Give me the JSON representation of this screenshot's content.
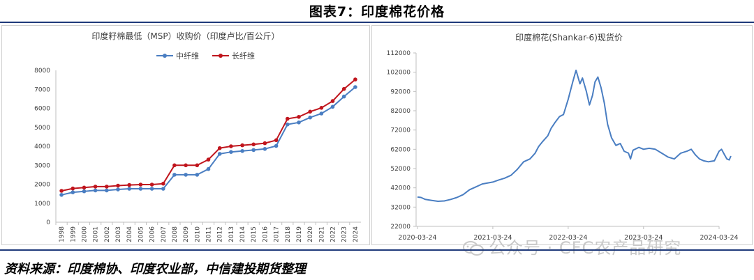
{
  "page": {
    "title": "图表7：印度棉花价格",
    "source": "资料来源：印度棉协、印度农业部，中信建投期货整理",
    "watermark": "公众号 · CFC农产品研究"
  },
  "chart_data": [
    {
      "type": "line",
      "title": "印度籽棉最低（MSP）收购价（印度卢比/百公斤）",
      "legend_position": "top",
      "categories": [
        "1998",
        "1999",
        "2000",
        "2001",
        "2002",
        "2003",
        "2004",
        "2005",
        "2006",
        "2007",
        "2008",
        "2009",
        "2010",
        "2011",
        "2012",
        "2013",
        "2014",
        "2015",
        "2016",
        "2017",
        "2018",
        "2019",
        "2020",
        "2021",
        "2022",
        "2023",
        "2024"
      ],
      "series": [
        {
          "name": "中纤维",
          "color": "#4a7ec2",
          "values": [
            1440,
            1575,
            1625,
            1675,
            1675,
            1725,
            1760,
            1760,
            1760,
            1760,
            2500,
            2500,
            2500,
            2800,
            3600,
            3700,
            3750,
            3800,
            3860,
            4020,
            5150,
            5255,
            5515,
            5726,
            6080,
            6620,
            7121
          ]
        },
        {
          "name": "长纤维",
          "color": "#c0151d",
          "values": [
            1650,
            1775,
            1825,
            1875,
            1875,
            1925,
            1960,
            1980,
            1980,
            2030,
            3000,
            3000,
            3000,
            3300,
            3900,
            4000,
            4050,
            4100,
            4160,
            4320,
            5450,
            5550,
            5825,
            6025,
            6380,
            7020,
            7521
          ]
        }
      ],
      "ylim": [
        0,
        8000
      ],
      "yticks": [
        0,
        1000,
        2000,
        3000,
        4000,
        5000,
        6000,
        7000,
        8000
      ],
      "grid": false
    },
    {
      "type": "line",
      "title": "印度棉花(Shankar-6)现货价",
      "x_start": "2020-03-24",
      "x_end": "2024-05-20",
      "xticks": [
        "2020-03-24",
        "2021-03-24",
        "2022-03-24",
        "2023-03-24",
        "2024-03-24"
      ],
      "ylim": [
        22000,
        112000
      ],
      "yticks": [
        22000,
        32000,
        42000,
        52000,
        62000,
        72000,
        82000,
        92000,
        102000,
        112000
      ],
      "grid": false,
      "series": [
        {
          "name": "",
          "color": "#4a7ec2",
          "points": [
            [
              "2020-03-24",
              37200
            ],
            [
              "2020-04-10",
              37000
            ],
            [
              "2020-05-01",
              36000
            ],
            [
              "2020-06-01",
              35500
            ],
            [
              "2020-07-01",
              35000
            ],
            [
              "2020-08-01",
              35200
            ],
            [
              "2020-09-01",
              36000
            ],
            [
              "2020-10-01",
              37000
            ],
            [
              "2020-11-01",
              38500
            ],
            [
              "2020-12-01",
              41000
            ],
            [
              "2021-01-01",
              42500
            ],
            [
              "2021-02-01",
              44000
            ],
            [
              "2021-03-24",
              45000
            ],
            [
              "2021-04-20",
              46000
            ],
            [
              "2021-05-20",
              47000
            ],
            [
              "2021-06-20",
              48500
            ],
            [
              "2021-07-20",
              51500
            ],
            [
              "2021-08-20",
              55500
            ],
            [
              "2021-09-20",
              57000
            ],
            [
              "2021-10-15",
              60000
            ],
            [
              "2021-11-01",
              63500
            ],
            [
              "2021-11-20",
              66000
            ],
            [
              "2021-12-15",
              69000
            ],
            [
              "2022-01-01",
              73000
            ],
            [
              "2022-01-20",
              76000
            ],
            [
              "2022-02-10",
              79000
            ],
            [
              "2022-03-01",
              80000
            ],
            [
              "2022-03-24",
              88000
            ],
            [
              "2022-04-15",
              97000
            ],
            [
              "2022-05-01",
              103000
            ],
            [
              "2022-05-20",
              96000
            ],
            [
              "2022-06-01",
              99000
            ],
            [
              "2022-06-20",
              92000
            ],
            [
              "2022-07-05",
              85000
            ],
            [
              "2022-07-20",
              90000
            ],
            [
              "2022-08-01",
              97000
            ],
            [
              "2022-08-15",
              99500
            ],
            [
              "2022-08-30",
              94000
            ],
            [
              "2022-09-15",
              86000
            ],
            [
              "2022-10-01",
              75000
            ],
            [
              "2022-10-20",
              68000
            ],
            [
              "2022-11-10",
              64000
            ],
            [
              "2022-12-01",
              65000
            ],
            [
              "2022-12-20",
              61000
            ],
            [
              "2023-01-10",
              60000
            ],
            [
              "2023-01-20",
              57000
            ],
            [
              "2023-02-01",
              61500
            ],
            [
              "2023-03-01",
              63000
            ],
            [
              "2023-03-24",
              62000
            ],
            [
              "2023-04-20",
              62500
            ],
            [
              "2023-05-20",
              62000
            ],
            [
              "2023-06-20",
              60000
            ],
            [
              "2023-07-20",
              58000
            ],
            [
              "2023-08-20",
              57000
            ],
            [
              "2023-09-20",
              60000
            ],
            [
              "2023-10-20",
              61000
            ],
            [
              "2023-11-10",
              62000
            ],
            [
              "2023-12-01",
              59000
            ],
            [
              "2023-12-20",
              57000
            ],
            [
              "2024-01-10",
              56000
            ],
            [
              "2024-02-01",
              55500
            ],
            [
              "2024-03-01",
              56000
            ],
            [
              "2024-03-24",
              61000
            ],
            [
              "2024-04-05",
              62000
            ],
            [
              "2024-04-20",
              59000
            ],
            [
              "2024-05-01",
              57000
            ],
            [
              "2024-05-12",
              56500
            ],
            [
              "2024-05-20",
              58500
            ]
          ]
        }
      ]
    }
  ]
}
